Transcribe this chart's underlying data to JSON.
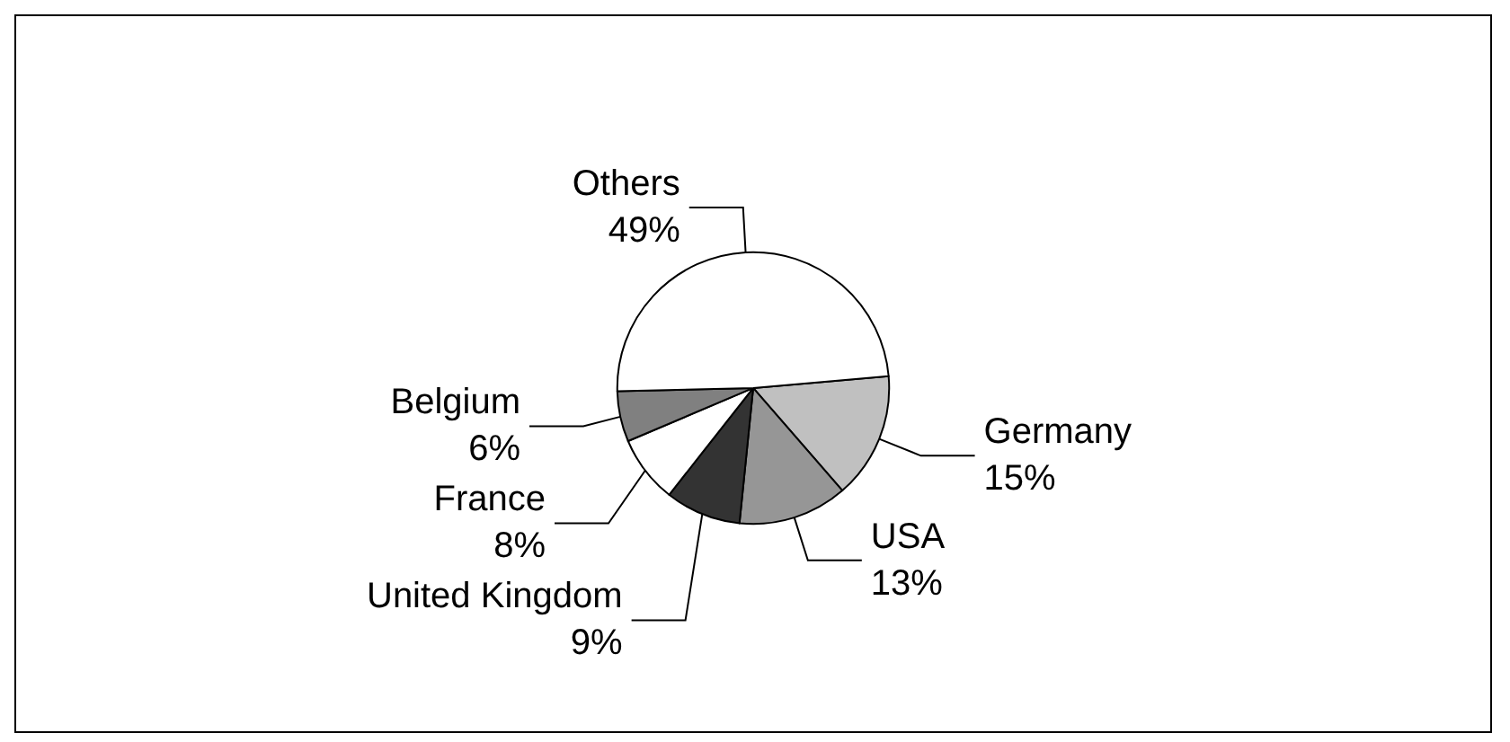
{
  "chart_data": {
    "type": "pie",
    "categories": [
      "Germany",
      "USA",
      "United Kingdom",
      "France",
      "Belgium",
      "Others"
    ],
    "values": [
      15,
      13,
      9,
      8,
      6,
      49
    ],
    "value_labels": [
      "15%",
      "13%",
      "9%",
      "8%",
      "6%",
      "49%"
    ],
    "colors": [
      "#c0c0c0",
      "#969696",
      "#333333",
      "#ffffff",
      "#808080",
      "#ffffff"
    ]
  }
}
